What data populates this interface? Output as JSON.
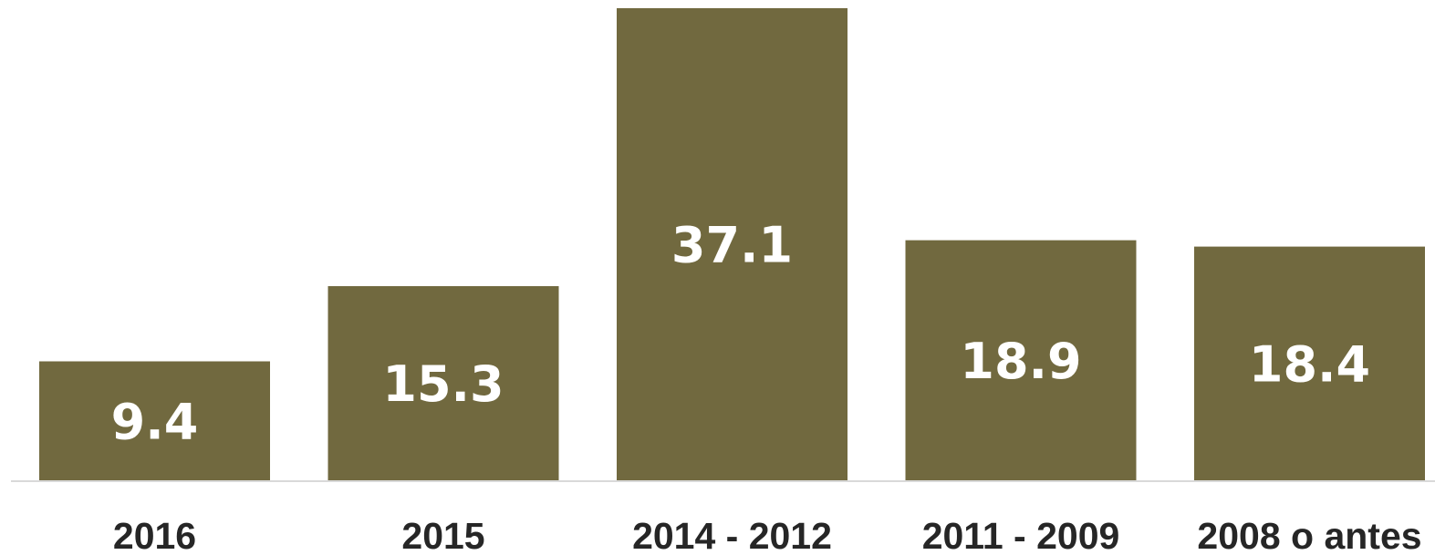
{
  "chart_data": {
    "type": "bar",
    "categories": [
      "2016",
      "2015",
      "2014 - 2012",
      "2011 - 2009",
      "2008 o antes"
    ],
    "values": [
      9.4,
      15.3,
      37.1,
      18.9,
      18.4
    ],
    "value_labels": [
      "9.4",
      "15.3",
      "37.1",
      "18.9",
      "18.4"
    ],
    "title": "",
    "xlabel": "",
    "ylabel": "",
    "ylim": [
      0,
      37.1
    ],
    "grid": false,
    "legend": "none",
    "bar_color": "#71693f",
    "label_color": "#ffffff",
    "tick_color": "#262626",
    "axis_color": "#d9d9d9"
  }
}
